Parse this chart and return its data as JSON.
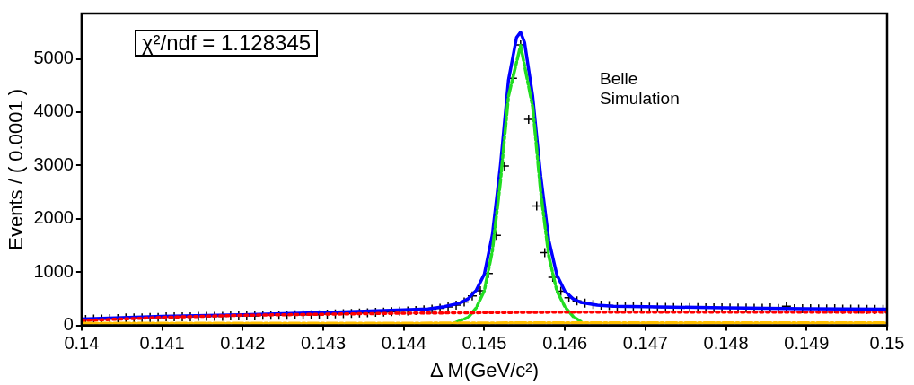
{
  "chart_data": {
    "type": "scatter",
    "xlabel": "Δ M(GeV/c²)",
    "ylabel": "Events / ( 0.0001 )",
    "annotations": [
      "χ²/ndf = 1.128345",
      "Belle",
      "Simulation"
    ],
    "xlim": [
      0.14,
      0.15
    ],
    "xticks": [
      0.14,
      0.141,
      0.142,
      0.143,
      0.144,
      0.145,
      0.146,
      0.147,
      0.148,
      0.149,
      0.15
    ],
    "ylim": [
      0,
      5850
    ],
    "yticks": [
      0,
      1000,
      2000,
      3000,
      4000,
      5000
    ],
    "grid": false,
    "legend": false,
    "series": [
      {
        "type": "line",
        "color": "#ffbf00",
        "line_style": "dashed",
        "marker": "none",
        "x": [
          0.14,
          0.142,
          0.144,
          0.146,
          0.148,
          0.15
        ],
        "values": [
          40,
          40,
          40,
          50,
          50,
          50
        ]
      },
      {
        "type": "line",
        "color": "#ff0000",
        "line_style": "dotted",
        "marker": "none",
        "x": [
          0.14,
          0.141,
          0.142,
          0.143,
          0.144,
          0.145,
          0.146,
          0.147,
          0.148,
          0.149,
          0.15
        ],
        "values": [
          90,
          150,
          190,
          210,
          230,
          240,
          250,
          250,
          250,
          250,
          250
        ]
      },
      {
        "type": "line",
        "color": "#22dd22",
        "line_style": "dashed",
        "marker": "none",
        "x": [
          0.1446,
          0.1448,
          0.1449,
          0.145,
          0.1451,
          0.1452,
          0.1453,
          0.14545,
          0.1456,
          0.1457,
          0.1458,
          0.1459,
          0.146,
          0.1461,
          0.1462
        ],
        "values": [
          30,
          150,
          330,
          650,
          1400,
          2700,
          4300,
          5250,
          4100,
          2500,
          1300,
          650,
          350,
          170,
          70
        ]
      },
      {
        "type": "line",
        "color": "#0000ff",
        "line_style": "solid",
        "marker": "none",
        "x": [
          0.14,
          0.141,
          0.142,
          0.143,
          0.144,
          0.1443,
          0.1445,
          0.1447,
          0.1448,
          0.1449,
          0.145,
          0.1451,
          0.1452,
          0.1453,
          0.1454,
          0.14545,
          0.1455,
          0.1456,
          0.1457,
          0.1458,
          0.1459,
          0.146,
          0.1461,
          0.1462,
          0.1464,
          0.1466,
          0.147,
          0.148,
          0.149,
          0.15
        ],
        "values": [
          120,
          170,
          200,
          240,
          290,
          310,
          350,
          420,
          500,
          660,
          960,
          1700,
          3000,
          4600,
          5400,
          5500,
          5300,
          4300,
          2800,
          1600,
          950,
          640,
          500,
          430,
          380,
          360,
          350,
          330,
          315,
          305
        ]
      },
      {
        "type": "scatter",
        "color": "#000000",
        "marker": "cross",
        "x": [
          0.14005,
          0.14015,
          0.14025,
          0.14035,
          0.14045,
          0.14055,
          0.14065,
          0.14075,
          0.14085,
          0.14095,
          0.14105,
          0.14115,
          0.14125,
          0.14135,
          0.14145,
          0.14155,
          0.14165,
          0.14175,
          0.14185,
          0.14195,
          0.14205,
          0.14215,
          0.14225,
          0.14235,
          0.14245,
          0.14255,
          0.14265,
          0.14275,
          0.14285,
          0.14295,
          0.14305,
          0.14315,
          0.14325,
          0.14335,
          0.14345,
          0.14355,
          0.14365,
          0.14375,
          0.14385,
          0.14395,
          0.14405,
          0.14415,
          0.14425,
          0.14435,
          0.14445,
          0.14455,
          0.14465,
          0.14475,
          0.14485,
          0.14495,
          0.14505,
          0.14515,
          0.14525,
          0.14535,
          0.14545,
          0.14555,
          0.14565,
          0.14575,
          0.14585,
          0.14595,
          0.14605,
          0.14615,
          0.14625,
          0.14635,
          0.14645,
          0.14655,
          0.14665,
          0.14675,
          0.14685,
          0.14695,
          0.14705,
          0.14715,
          0.14725,
          0.14735,
          0.14745,
          0.14755,
          0.14765,
          0.14775,
          0.14785,
          0.14795,
          0.14805,
          0.14815,
          0.14825,
          0.14835,
          0.14845,
          0.14855,
          0.14865,
          0.14875,
          0.14885,
          0.14895,
          0.14905,
          0.14915,
          0.14925,
          0.14935,
          0.14945,
          0.14955,
          0.14965,
          0.14975,
          0.14985,
          0.14995
        ],
        "values": [
          110,
          120,
          120,
          130,
          130,
          140,
          140,
          140,
          150,
          150,
          160,
          160,
          160,
          160,
          170,
          170,
          170,
          170,
          180,
          180,
          180,
          180,
          190,
          190,
          190,
          190,
          200,
          200,
          200,
          200,
          210,
          215,
          220,
          225,
          232,
          238,
          245,
          252,
          260,
          268,
          272,
          280,
          290,
          305,
          320,
          345,
          380,
          440,
          552,
          650,
          974,
          1688,
          2987,
          4632,
          5260,
          3864,
          2240,
          1364,
          900,
          640,
          520,
          460,
          420,
          395,
          380,
          370,
          362,
          355,
          350,
          345,
          342,
          340,
          338,
          336,
          335,
          333,
          332,
          330,
          330,
          328,
          327,
          325,
          324,
          322,
          320,
          330,
          318,
          360,
          315,
          313,
          312,
          310,
          308,
          315,
          306,
          305,
          304,
          302,
          301,
          300
        ]
      }
    ]
  }
}
